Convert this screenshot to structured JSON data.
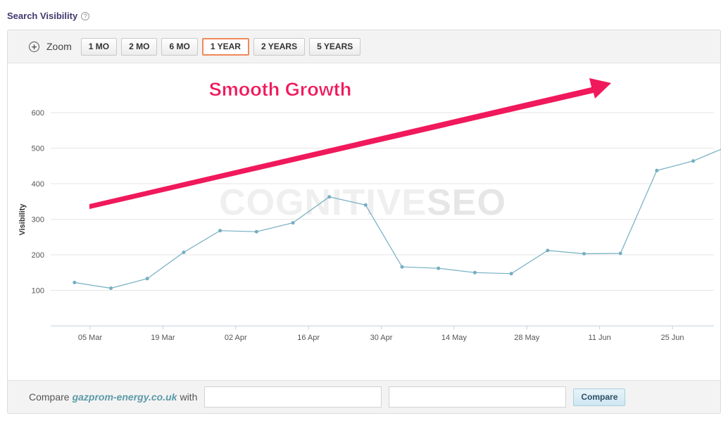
{
  "section": {
    "title": "Search Visibility",
    "help_icon": "?"
  },
  "toolbar": {
    "zoom_icon": "+",
    "zoom_label": "Zoom",
    "buttons": [
      "1 MO",
      "2 MO",
      "6 MO",
      "1 YEAR",
      "2 YEARS",
      "5 YEARS"
    ],
    "active": "1 YEAR"
  },
  "compare": {
    "prefix": "Compare",
    "domain": "gazprom-energy.co.uk",
    "suffix": "with",
    "button_label": "Compare"
  },
  "chart_data": {
    "type": "line",
    "ylabel": "Visibility",
    "ylim": [
      0,
      600
    ],
    "yticks": [
      100,
      200,
      300,
      400,
      500,
      600
    ],
    "xtick_labels": [
      "05 Mar",
      "19 Mar",
      "02 Apr",
      "16 Apr",
      "30 Apr",
      "14 May",
      "28 May",
      "11 Jun",
      "25 Jun"
    ],
    "x": [
      -3,
      4,
      11,
      18,
      25,
      32,
      39,
      46,
      53,
      60,
      67,
      74,
      81,
      88,
      95,
      102,
      109,
      116,
      123,
      127
    ],
    "values": [
      122,
      106,
      133,
      207,
      268,
      265,
      290,
      363,
      340,
      166,
      162,
      150,
      147,
      212,
      203,
      204,
      437,
      464,
      507,
      491
    ],
    "line_color": "#74aec2",
    "watermark": {
      "part1": "COGNITIVE",
      "part2": "SEO"
    },
    "annotation": {
      "text": "Smooth Growth",
      "color": "#f0195b"
    }
  }
}
